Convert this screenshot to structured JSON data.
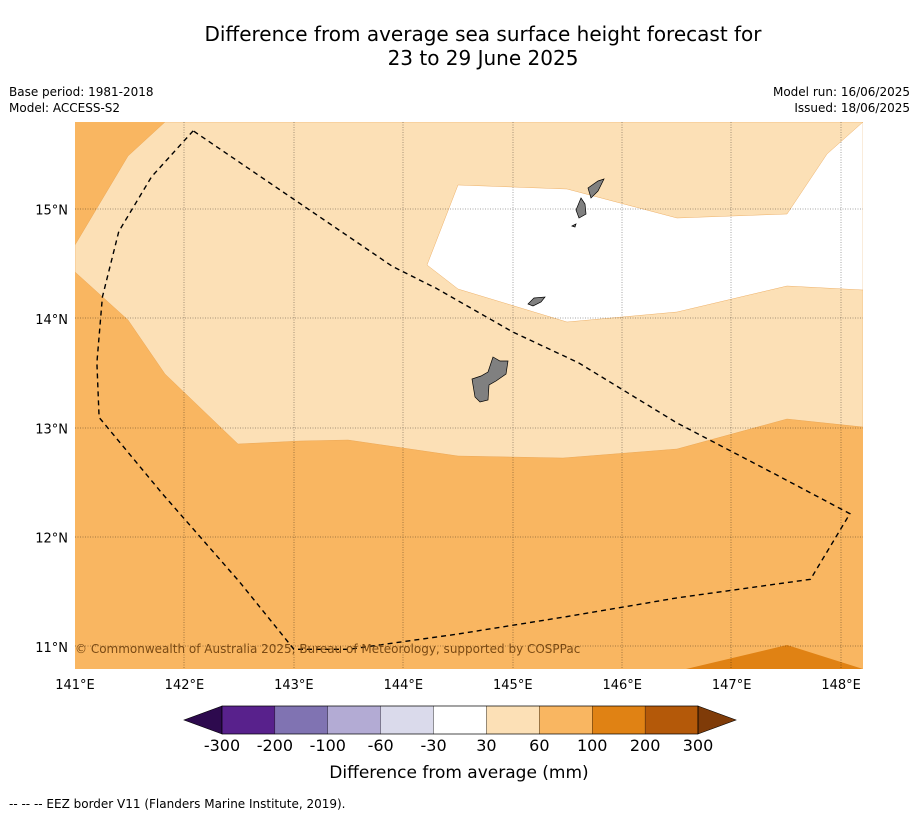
{
  "title": {
    "line1": "Difference from average sea surface height forecast for",
    "line2": "23 to 29 June 2025"
  },
  "meta": {
    "base_period": "Base period: 1981-2018",
    "model": "Model: ACCESS-S2",
    "model_run": "Model run: 16/06/2025",
    "issued": "Issued: 18/06/2025"
  },
  "map": {
    "lon_range": [
      141.0,
      148.2
    ],
    "lat_range": [
      10.8,
      15.8
    ],
    "lon_ticks": [
      141,
      142,
      143,
      144,
      145,
      146,
      147,
      148
    ],
    "lon_tick_labels": [
      "141°E",
      "142°E",
      "143°E",
      "144°E",
      "145°E",
      "146°E",
      "147°E",
      "148°E"
    ],
    "lat_ticks": [
      11,
      12,
      13,
      14,
      15
    ],
    "lat_tick_labels": [
      "11°N",
      "12°N",
      "13°N",
      "14°N",
      "15°N"
    ],
    "gridlines": true,
    "copyright": "© Commonwealth of Australia 2025, Bureau of Meteorology, supported by COSPPac",
    "eez_border": [
      [
        142.08,
        15.72
      ],
      [
        141.7,
        15.3
      ],
      [
        141.4,
        14.8
      ],
      [
        141.25,
        14.2
      ],
      [
        141.2,
        13.6
      ],
      [
        141.22,
        13.1
      ],
      [
        141.8,
        12.4
      ],
      [
        142.5,
        11.6
      ],
      [
        143.0,
        10.98
      ],
      [
        143.5,
        10.98
      ],
      [
        144.5,
        11.12
      ],
      [
        145.5,
        11.28
      ],
      [
        146.5,
        11.45
      ],
      [
        147.72,
        11.62
      ],
      [
        148.08,
        12.22
      ],
      [
        147.4,
        12.58
      ],
      [
        146.5,
        13.05
      ],
      [
        145.6,
        13.6
      ],
      [
        145.0,
        13.88
      ],
      [
        144.3,
        14.28
      ],
      [
        143.9,
        14.48
      ],
      [
        142.08,
        15.72
      ]
    ]
  },
  "colorbar": {
    "ticks": [
      "-300",
      "-200",
      "-100",
      "-60",
      "-30",
      "30",
      "60",
      "100",
      "200",
      "300"
    ],
    "colors": [
      "#2d0a4e",
      "#58218c",
      "#8073b2",
      "#b3abd4",
      "#dadaeb",
      "#ffffff",
      "#fce0b6",
      "#f9b661",
      "#e08214",
      "#b45909",
      "#7f3b08"
    ],
    "label": "Difference from average (mm)"
  },
  "footer": "--  --  -- EEZ border V11 (Flanders Marine Institute, 2019)."
}
